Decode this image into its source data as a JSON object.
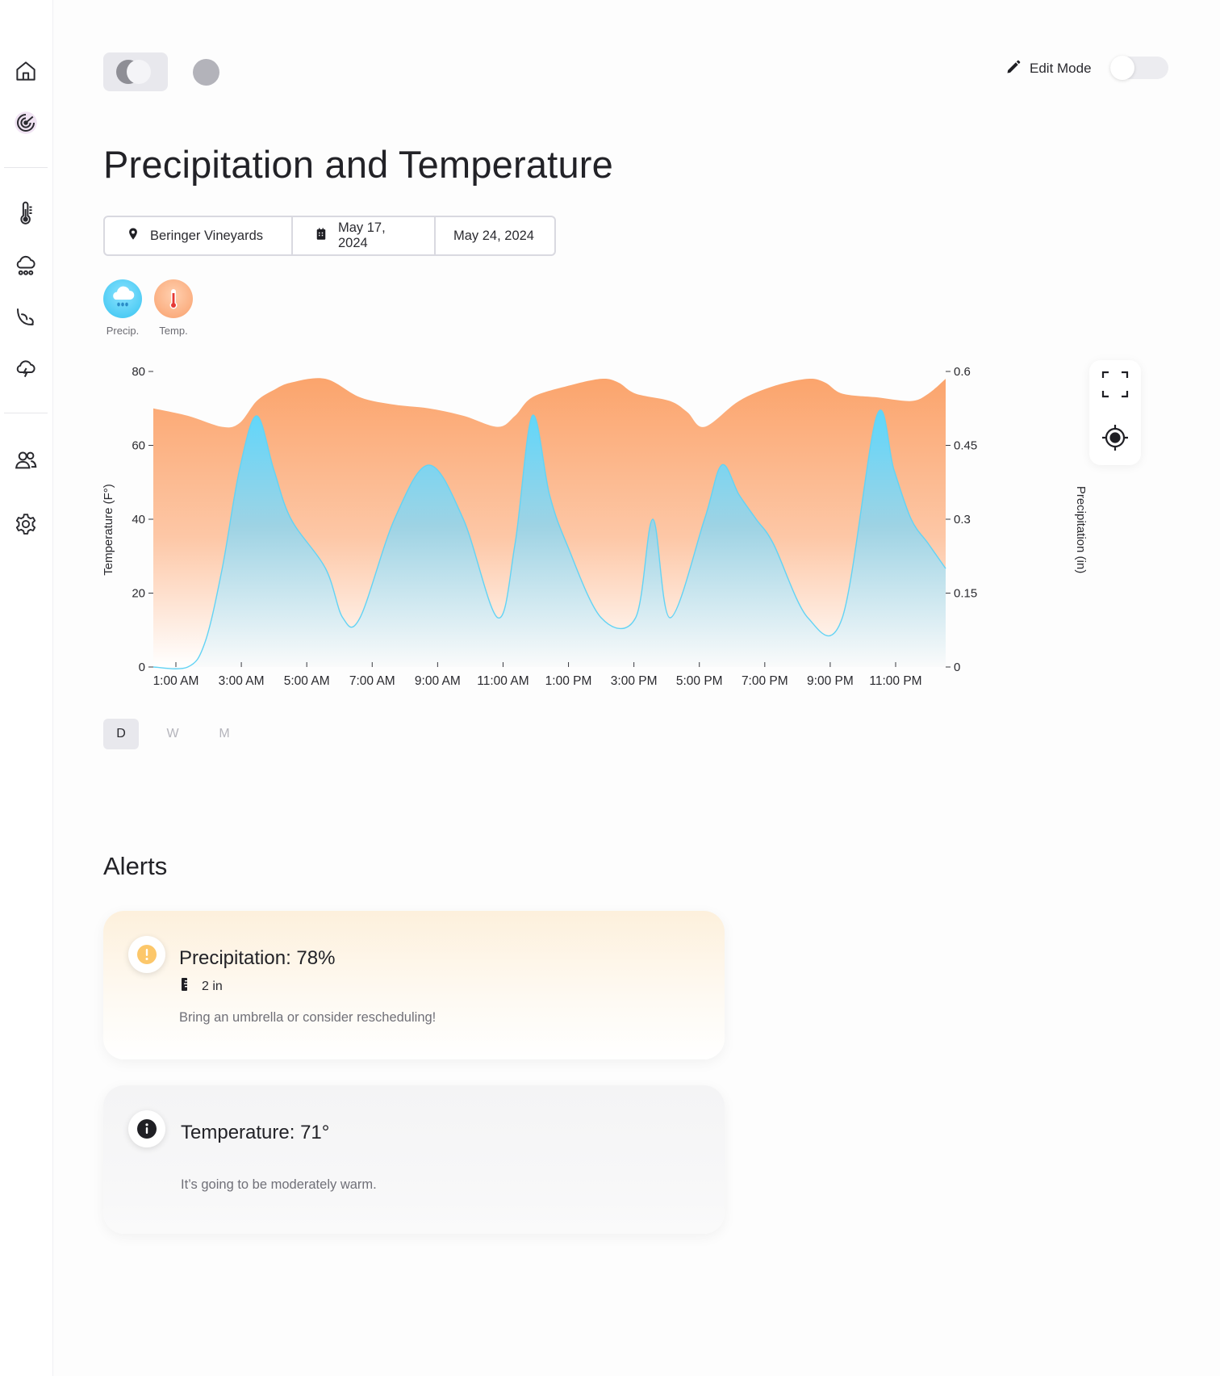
{
  "header": {
    "edit_mode_label": "Edit Mode",
    "edit_mode_on": false
  },
  "page": {
    "title": "Precipitation and Temperature"
  },
  "filters": {
    "location": "Beringer Vineyards",
    "start_date": "May 17, 2024",
    "end_date": "May 24, 2024"
  },
  "layers": [
    {
      "label": "Precip.",
      "icon": "rain-cloud-icon",
      "color": "#4fd0f4"
    },
    {
      "label": "Temp.",
      "icon": "thermometer-icon",
      "color": "#f9a06c"
    }
  ],
  "range_tabs": [
    {
      "label": "D",
      "active": true
    },
    {
      "label": "W",
      "active": false
    },
    {
      "label": "M",
      "active": false
    }
  ],
  "alerts": {
    "title": "Alerts",
    "items": [
      {
        "heading": "Precipitation: 78%",
        "detail": "2 in",
        "message": "Bring an umbrella or consider rescheduling!",
        "level": "warning",
        "icon_color": "#fcc76a"
      },
      {
        "heading": "Temperature: 71°",
        "detail": "",
        "message": "It’s going to be moderately warm.",
        "level": "info",
        "icon_color": "#1f1f24"
      }
    ]
  },
  "chart_data": {
    "type": "area",
    "xlabel": "",
    "ylabel": "Temperature (F°)",
    "y2label": "Precipitation (in)",
    "ylim": [
      0,
      80
    ],
    "y2lim": [
      0,
      0.6
    ],
    "yticks": [
      "0",
      "20",
      "40",
      "60",
      "80"
    ],
    "y2ticks": [
      "0",
      "0.15",
      "0.3",
      "0.45",
      "0.6"
    ],
    "xticks": [
      "1:00 AM",
      "3:00 AM",
      "5:00 AM",
      "7:00 AM",
      "9:00 AM",
      "11:00 AM",
      "1:00 PM",
      "3:00 PM",
      "5:00 PM",
      "7:00 PM",
      "9:00 PM",
      "11:00 PM"
    ],
    "grid": false,
    "series": [
      {
        "name": "Temp.",
        "axis": "left",
        "color": "#fba46c",
        "x": [
          0,
          1,
          2,
          2.5,
          3,
          3.5,
          4,
          5,
          6,
          7,
          8,
          9,
          10,
          10.5,
          11,
          12,
          13,
          13.5,
          14,
          15,
          15.5,
          16,
          17,
          18,
          19,
          19.5,
          20,
          21,
          22,
          22.5,
          23
        ],
        "values": [
          70,
          68,
          65,
          66,
          72,
          75,
          77,
          78,
          73,
          71,
          70,
          68,
          65,
          68,
          73,
          76,
          78,
          77,
          74,
          72,
          69,
          65,
          72,
          76,
          78,
          77,
          74,
          73,
          72,
          74,
          78
        ]
      },
      {
        "name": "Precip.",
        "axis": "right",
        "color": "#63d3f4",
        "x": [
          0,
          1,
          1.5,
          2,
          2.5,
          3,
          3.5,
          4,
          5,
          5.5,
          6,
          7,
          8,
          9,
          10,
          10.5,
          11,
          11.5,
          12,
          13,
          14,
          14.5,
          15,
          16,
          16.5,
          17,
          17.5,
          18,
          19,
          20,
          21,
          21.5,
          22,
          22.5,
          23
        ],
        "values": [
          0,
          0,
          0.05,
          0.2,
          0.4,
          0.51,
          0.4,
          0.3,
          0.2,
          0.1,
          0.1,
          0.3,
          0.41,
          0.3,
          0.1,
          0.25,
          0.51,
          0.35,
          0.25,
          0.1,
          0.1,
          0.3,
          0.1,
          0.3,
          0.41,
          0.35,
          0.3,
          0.25,
          0.1,
          0.1,
          0.51,
          0.4,
          0.3,
          0.25,
          0.2
        ]
      }
    ]
  }
}
